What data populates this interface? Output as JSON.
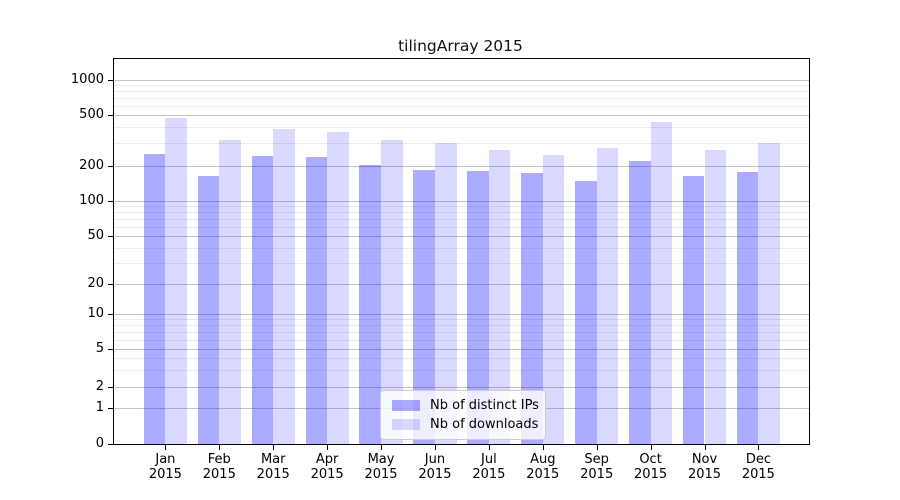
{
  "figure": {
    "title": "tilingArray 2015"
  },
  "legend": {
    "items": [
      {
        "label": "Nb of distinct IPs",
        "series": "ips"
      },
      {
        "label": "Nb of downloads",
        "series": "downloads"
      }
    ]
  },
  "colors": {
    "ips_fill": "rgba(0,0,255,0.33)",
    "downloads_fill": "rgba(0,0,255,0.15)",
    "major_grid": "#c3c3c3",
    "minor_grid": "#ececec",
    "axis": "#000000"
  },
  "y_axis": {
    "tick_labels": [
      "0",
      "1",
      "2",
      "5",
      "10",
      "20",
      "50",
      "100",
      "200",
      "500",
      "1000"
    ]
  },
  "x_axis": {
    "months": [
      "Jan",
      "Feb",
      "Mar",
      "Apr",
      "May",
      "Jun",
      "Jul",
      "Aug",
      "Sep",
      "Oct",
      "Nov",
      "Dec"
    ],
    "year": "2015"
  },
  "chart_data": {
    "type": "bar",
    "title": "tilingArray 2015",
    "categories": [
      "Jan 2015",
      "Feb 2015",
      "Mar 2015",
      "Apr 2015",
      "May 2015",
      "Jun 2015",
      "Jul 2015",
      "Aug 2015",
      "Sep 2015",
      "Oct 2015",
      "Nov 2015",
      "Dec 2015"
    ],
    "series": [
      {
        "name": "Nb of distinct IPs",
        "values": [
          250,
          165,
          240,
          235,
          205,
          185,
          180,
          175,
          148,
          220,
          163,
          178
        ]
      },
      {
        "name": "Nb of downloads",
        "values": [
          470,
          320,
          390,
          370,
          320,
          300,
          265,
          245,
          275,
          445,
          265,
          305
        ]
      }
    ],
    "y_ticks": [
      0,
      1,
      2,
      5,
      10,
      20,
      50,
      100,
      200,
      500,
      1000
    ],
    "y_scale": "log-like (0 baseline, compressed lower decades)",
    "ylim": [
      0,
      1000
    ],
    "xlabel": "",
    "ylabel": "",
    "grid": "horizontal major+minor",
    "legend_position": "inside lower-center"
  }
}
